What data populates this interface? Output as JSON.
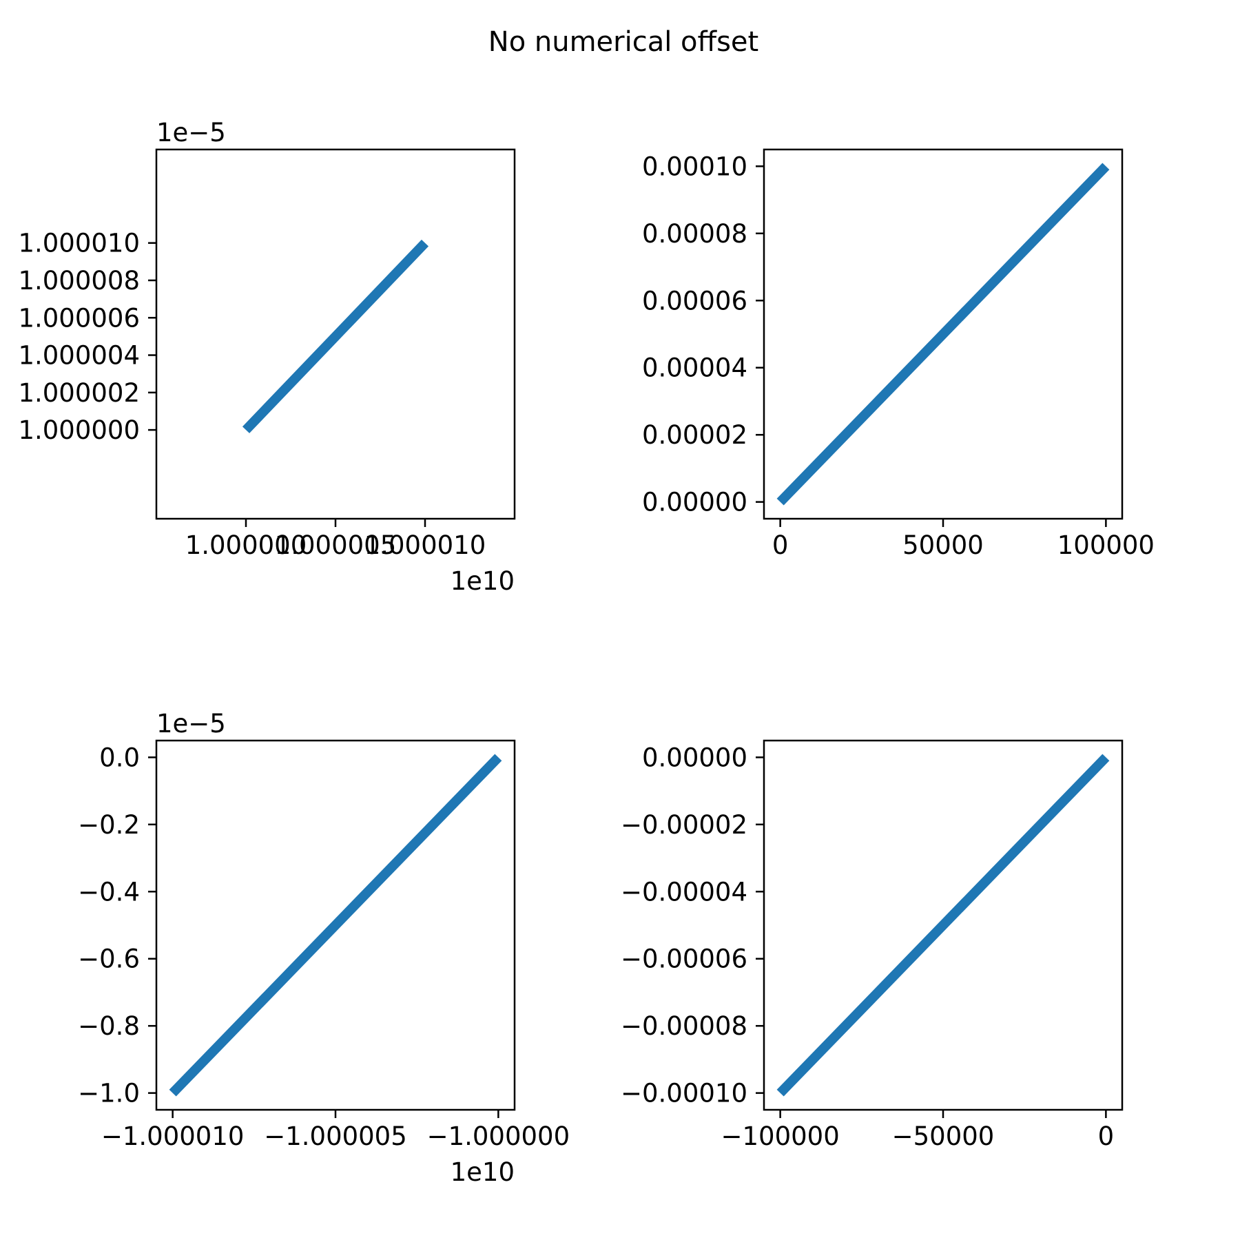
{
  "figure": {
    "title": "No numerical offset"
  },
  "chart_data": [
    {
      "type": "line",
      "x": [
        10000000000,
        10000100000
      ],
      "y": [
        1e-05,
        1.00001e-05
      ],
      "x_ticks": [
        "1.000000",
        "1.000005",
        "1.000010"
      ],
      "x_tick_values": [
        1.0,
        1.000005,
        1.00001
      ],
      "y_ticks": [
        "1.000000",
        "1.000002",
        "1.000004",
        "1.000006",
        "1.000008",
        "1.000010"
      ],
      "y_tick_values": [
        1.0,
        1.000002,
        1.000004,
        1.000006,
        1.000008,
        1.00001
      ],
      "x_offset_label": "1e10",
      "y_offset_label": "1e−5",
      "xlim": [
        9999950000,
        10000150000
      ],
      "ylim": [
        9.9999525e-06,
        1.000015e-05
      ],
      "color": "#1f77b4",
      "grid": false
    },
    {
      "type": "line",
      "x": [
        0,
        100000
      ],
      "y": [
        0.0,
        0.0001
      ],
      "x_ticks": [
        "0",
        "50000",
        "100000"
      ],
      "x_tick_values": [
        0,
        50000,
        100000
      ],
      "y_ticks": [
        "0.00000",
        "0.00002",
        "0.00004",
        "0.00006",
        "0.00008",
        "0.00010"
      ],
      "y_tick_values": [
        0.0,
        2e-05,
        4e-05,
        6e-05,
        8e-05,
        0.0001
      ],
      "x_offset_label": "",
      "y_offset_label": "",
      "xlim": [
        -5000,
        105000
      ],
      "ylim": [
        -5e-06,
        0.000105
      ],
      "color": "#1f77b4",
      "grid": false
    },
    {
      "type": "line",
      "x": [
        -10000100000,
        -10000000000
      ],
      "y": [
        -1e-05,
        0.0
      ],
      "x_ticks": [
        "−1.000010",
        "−1.000005",
        "−1.000000"
      ],
      "x_tick_values": [
        -1.00001,
        -1.000005,
        -1.0
      ],
      "y_ticks": [
        "0.0",
        "−0.2",
        "−0.4",
        "−0.6",
        "−0.8",
        "−1.0"
      ],
      "y_tick_values": [
        0.0,
        -0.2,
        -0.4,
        -0.6,
        -0.8,
        -1.0
      ],
      "x_offset_label": "1e10",
      "y_offset_label": "1e−5",
      "xlim": [
        -10000105000,
        -9999995000
      ],
      "ylim": [
        -1.05e-05,
        5e-07
      ],
      "color": "#1f77b4",
      "grid": false
    },
    {
      "type": "line",
      "x": [
        -100000,
        0
      ],
      "y": [
        -0.0001,
        0.0
      ],
      "x_ticks": [
        "−100000",
        "−50000",
        "0"
      ],
      "x_tick_values": [
        -100000,
        -50000,
        0
      ],
      "y_ticks": [
        "0.00000",
        "−0.00002",
        "−0.00004",
        "−0.00006",
        "−0.00008",
        "−0.00010"
      ],
      "y_tick_values": [
        0.0,
        -2e-05,
        -4e-05,
        -6e-05,
        -8e-05,
        -0.0001
      ],
      "x_offset_label": "",
      "y_offset_label": "",
      "xlim": [
        -105000,
        5000
      ],
      "ylim": [
        -0.000105,
        5e-06
      ],
      "color": "#1f77b4",
      "grid": false
    }
  ]
}
